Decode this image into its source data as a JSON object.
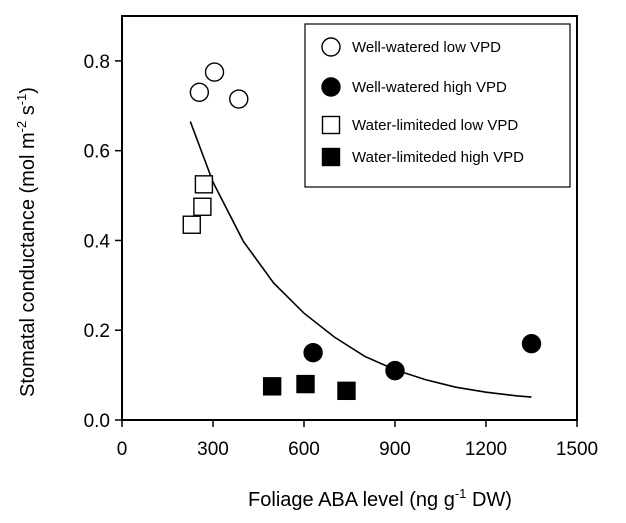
{
  "chart_data": {
    "type": "scatter",
    "title": "",
    "xlabel": {
      "pre": "Foliage ABA level (ng g",
      "sup": "-1",
      "post": " DW)"
    },
    "ylabel": {
      "pre": "Stomatal conductance (mol m",
      "sup1": "-2",
      "mid": " s",
      "sup2": "-1",
      "post": ")"
    },
    "xlim": [
      0,
      1500
    ],
    "ylim": [
      0,
      0.9
    ],
    "x_ticks": [
      "0",
      "300",
      "600",
      "900",
      "1200",
      "1500"
    ],
    "y_ticks": [
      "0.0",
      "0.2",
      "0.4",
      "0.6",
      "0.8"
    ],
    "grid": false,
    "legend_position": "top-right",
    "series": [
      {
        "name": "Well-watered low VPD",
        "marker": "circle",
        "filled": false,
        "points": [
          {
            "x": 255,
            "y": 0.73
          },
          {
            "x": 305,
            "y": 0.775
          },
          {
            "x": 385,
            "y": 0.715
          }
        ]
      },
      {
        "name": "Well-watered high VPD",
        "marker": "circle",
        "filled": true,
        "points": [
          {
            "x": 630,
            "y": 0.15
          },
          {
            "x": 900,
            "y": 0.11
          },
          {
            "x": 1350,
            "y": 0.17
          }
        ]
      },
      {
        "name": "Water-limiteded low VPD",
        "marker": "square",
        "filled": false,
        "points": [
          {
            "x": 230,
            "y": 0.435
          },
          {
            "x": 265,
            "y": 0.475
          },
          {
            "x": 270,
            "y": 0.525
          }
        ]
      },
      {
        "name": "Water-limiteded high VPD",
        "marker": "square",
        "filled": true,
        "points": [
          {
            "x": 495,
            "y": 0.075
          },
          {
            "x": 605,
            "y": 0.08
          },
          {
            "x": 740,
            "y": 0.065
          }
        ]
      }
    ],
    "fit_curve": {
      "x": [
        225,
        300,
        400,
        500,
        600,
        700,
        800,
        900,
        1000,
        1100,
        1200,
        1300,
        1350
      ],
      "y": [
        0.665,
        0.53,
        0.398,
        0.305,
        0.238,
        0.185,
        0.142,
        0.112,
        0.09,
        0.073,
        0.062,
        0.054,
        0.051
      ]
    },
    "colors": {
      "axis": "#000000",
      "marker": "#000000",
      "background": "#ffffff"
    }
  }
}
